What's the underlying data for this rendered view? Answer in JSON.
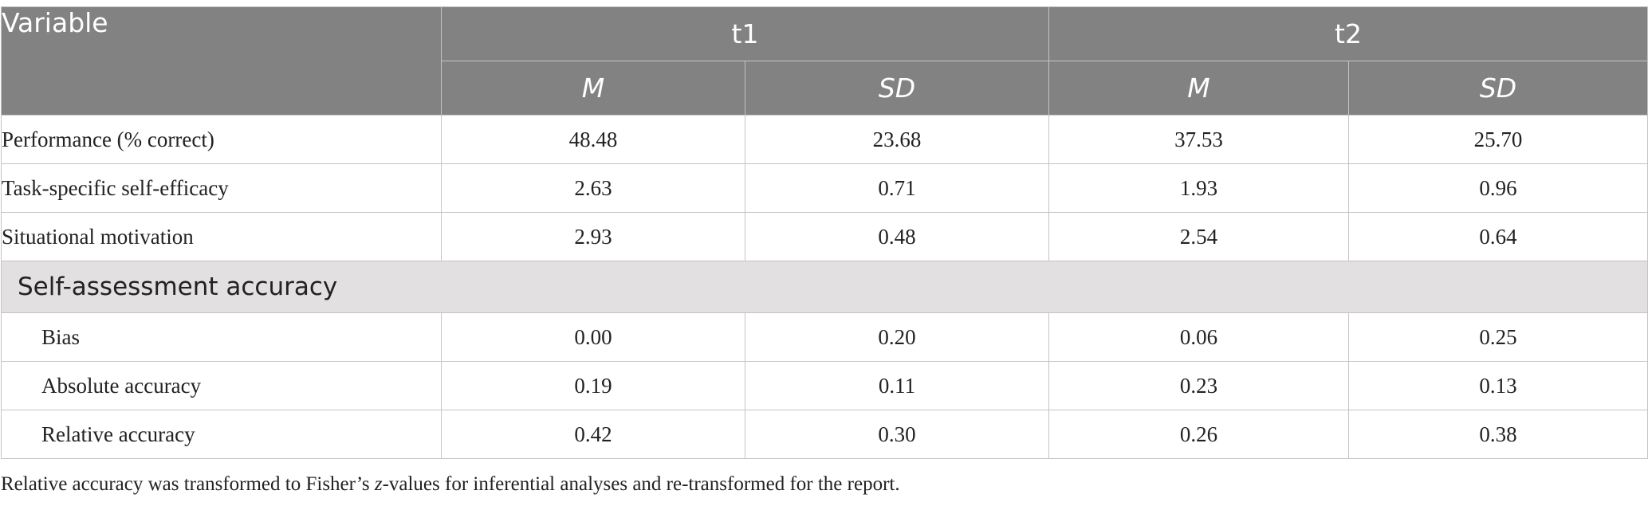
{
  "table": {
    "header": {
      "variable": "Variable",
      "groups": [
        {
          "label": "t1",
          "cols": [
            "M",
            "SD"
          ]
        },
        {
          "label": "t2",
          "cols": [
            "M",
            "SD"
          ]
        }
      ]
    },
    "rows": [
      {
        "label": "Performance (% correct)",
        "values": [
          "48.48",
          "23.68",
          "37.53",
          "25.70"
        ]
      },
      {
        "label": "Task-specific self-efficacy",
        "values": [
          "2.63",
          "0.71",
          "1.93",
          "0.96"
        ]
      },
      {
        "label": "Situational motivation",
        "values": [
          "2.93",
          "0.48",
          "2.54",
          "0.64"
        ]
      }
    ],
    "section": {
      "label": "Self-assessment accuracy",
      "rows": [
        {
          "label": "Bias",
          "values": [
            "0.00",
            "0.20",
            "0.06",
            "0.25"
          ]
        },
        {
          "label": "Absolute accuracy",
          "values": [
            "0.19",
            "0.11",
            "0.23",
            "0.13"
          ]
        },
        {
          "label": "Relative accuracy",
          "values": [
            "0.42",
            "0.30",
            "0.26",
            "0.38"
          ]
        }
      ]
    }
  },
  "note": {
    "before": "Relative accuracy was transformed to Fisher’s ",
    "italic": "z",
    "after": "-values for inferential analyses and re-transformed for the report."
  }
}
